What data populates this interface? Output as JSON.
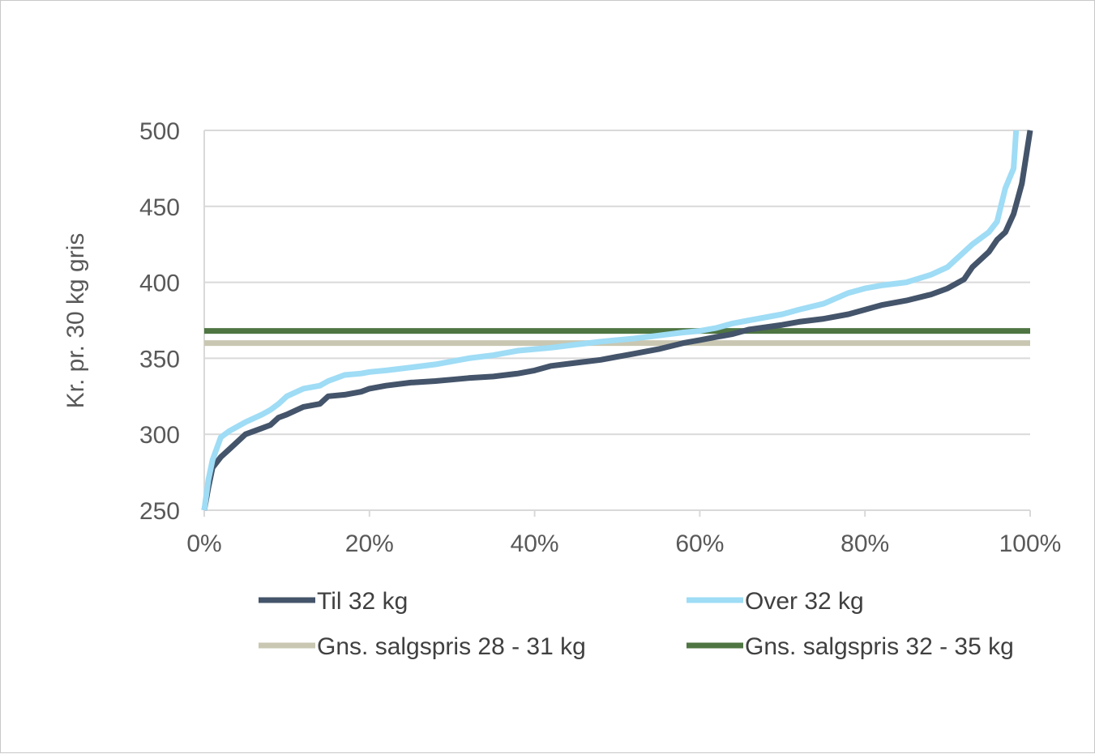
{
  "chart_data": {
    "type": "line",
    "ylabel": "Kr. pr. 30 kg gris",
    "xlabel": "",
    "ylim": [
      250,
      500
    ],
    "xlim": [
      0,
      100
    ],
    "x_unit": "%",
    "yticks": [
      250,
      300,
      350,
      400,
      450,
      500
    ],
    "xticks": [
      0,
      20,
      40,
      60,
      80,
      100
    ],
    "ytick_labels": [
      "250",
      "300",
      "350",
      "400",
      "450",
      "500"
    ],
    "xtick_labels": [
      "0%",
      "20%",
      "40%",
      "60%",
      "80%",
      "100%"
    ],
    "grid": "horizontal",
    "legend_position": "bottom",
    "series": [
      {
        "name": "Til 32 kg",
        "color": "#44546a",
        "x": [
          0,
          0.5,
          1,
          2,
          3,
          5,
          7,
          8,
          9,
          10,
          12,
          14,
          15,
          17,
          19,
          20,
          22,
          25,
          28,
          30,
          32,
          35,
          38,
          40,
          42,
          45,
          48,
          50,
          52,
          55,
          58,
          60,
          62,
          64,
          66,
          70,
          72,
          75,
          78,
          80,
          82,
          85,
          88,
          90,
          92,
          93,
          95,
          96,
          97,
          98,
          99,
          100
        ],
        "values": [
          250,
          265,
          278,
          285,
          290,
          300,
          304,
          306,
          311,
          313,
          318,
          320,
          325,
          326,
          328,
          330,
          332,
          334,
          335,
          336,
          337,
          338,
          340,
          342,
          345,
          347,
          349,
          351,
          353,
          356,
          360,
          362,
          364,
          366,
          369,
          372,
          374,
          376,
          379,
          382,
          385,
          388,
          392,
          396,
          402,
          410,
          420,
          428,
          433,
          445,
          465,
          500
        ]
      },
      {
        "name": "Over 32 kg",
        "color": "#9fdcf5",
        "x": [
          0,
          0.5,
          1,
          2,
          3,
          5,
          7,
          8,
          9,
          10,
          12,
          14,
          15,
          17,
          19,
          20,
          22,
          25,
          28,
          30,
          32,
          35,
          38,
          40,
          42,
          45,
          48,
          50,
          52,
          55,
          58,
          60,
          62,
          64,
          66,
          70,
          72,
          75,
          78,
          80,
          82,
          85,
          88,
          90,
          92,
          93,
          95,
          96,
          97,
          98,
          98.3
        ],
        "values": [
          250,
          270,
          283,
          298,
          302,
          308,
          313,
          316,
          320,
          325,
          330,
          332,
          335,
          339,
          340,
          341,
          342,
          344,
          346,
          348,
          350,
          352,
          355,
          356,
          357,
          359,
          361,
          362,
          363,
          365,
          367,
          368,
          370,
          373,
          375,
          379,
          382,
          386,
          393,
          396,
          398,
          400,
          405,
          410,
          420,
          425,
          433,
          440,
          462,
          475,
          500
        ]
      },
      {
        "name": "Gns. salgspris 28 - 31 kg",
        "color": "#c9c7b2",
        "x": [
          0,
          100
        ],
        "values": [
          360,
          360
        ]
      },
      {
        "name": "Gns. salgspris 32 - 35 kg",
        "color": "#4e7542",
        "x": [
          0,
          100
        ],
        "values": [
          368,
          368
        ]
      }
    ]
  }
}
